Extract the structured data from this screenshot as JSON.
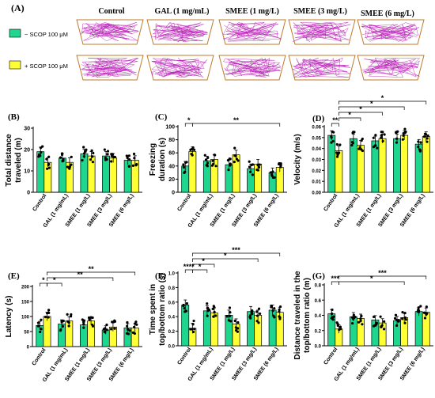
{
  "colors": {
    "minus": "#1fd68e",
    "plus": "#ffff33",
    "track": "#b81fb6",
    "frame": "#c07a2a",
    "dot": "#000000"
  },
  "panel_a": {
    "label": "(A)",
    "columns": [
      "Control",
      "GAL (1 mg/mL)",
      "SMEE (1 mg/L)",
      "SMEE (3 mg/L)",
      "SMEE (6 mg/L)"
    ],
    "rows": [
      {
        "legend": "− SCOP 100 μM",
        "color_key": "minus"
      },
      {
        "legend": "+ SCOP 100 μM",
        "color_key": "plus"
      }
    ]
  },
  "chart_data": [
    {
      "panel": "(B)",
      "type": "bar",
      "categories": [
        "Control",
        "GAL (1 mg/mL)",
        "SMEE (1 mg/L)",
        "SMEE (3 mg/L)",
        "SMEE (6 mg/L)"
      ],
      "series": [
        {
          "name": "− SCOP 100 μM",
          "values": [
            19,
            16,
            18,
            17,
            15
          ]
        },
        {
          "name": "+ SCOP 100 μM",
          "values": [
            14,
            14,
            17,
            16,
            15
          ]
        }
      ],
      "ylabel": "Total distance traveled (m)",
      "ylim": [
        0,
        30
      ],
      "yticks": [
        0,
        10,
        20,
        30
      ],
      "sig": []
    },
    {
      "panel": "(C)",
      "type": "bar",
      "categories": [
        "Control",
        "GAL (1 mg/mL)",
        "SMEE (1 mg/L)",
        "SMEE (3 mg/L)",
        "SMEE (6 mg/L)"
      ],
      "series": [
        {
          "name": "− SCOP 100 μM",
          "values": [
            40,
            48,
            42,
            36,
            30
          ]
        },
        {
          "name": "+ SCOP 100 μM",
          "values": [
            62,
            50,
            57,
            43,
            38
          ]
        }
      ],
      "ylabel": "Freezing duration (s)",
      "ylim": [
        0,
        100
      ],
      "yticks": [
        0,
        20,
        40,
        60,
        80,
        100
      ],
      "sig": [
        {
          "from": [
            0,
            0
          ],
          "to": [
            0,
            1
          ],
          "level": 1,
          "text": "*"
        },
        {
          "from": [
            0,
            1
          ],
          "to": [
            4,
            1
          ],
          "level": 1,
          "text": "**"
        }
      ]
    },
    {
      "panel": "(D)",
      "type": "bar",
      "categories": [
        "Control",
        "GAL (1 mg/mL)",
        "SMEE (1 mg/L)",
        "SMEE (3 mg/L)",
        "SMEE (6 mg/L)"
      ],
      "series": [
        {
          "name": "− SCOP 100 μM",
          "values": [
            0.052,
            0.049,
            0.047,
            0.049,
            0.044
          ]
        },
        {
          "name": "+ SCOP 100 μM",
          "values": [
            0.038,
            0.043,
            0.049,
            0.052,
            0.051
          ]
        }
      ],
      "ylabel": "Velocity (m/s)",
      "ylim": [
        0,
        0.06
      ],
      "yticks": [
        0.0,
        0.01,
        0.02,
        0.03,
        0.04,
        0.05,
        0.06
      ],
      "sig": [
        {
          "from": [
            0,
            0
          ],
          "to": [
            0,
            1
          ],
          "level": 1,
          "text": "**"
        },
        {
          "from": [
            0,
            1
          ],
          "to": [
            1,
            1
          ],
          "level": 2,
          "text": "*"
        },
        {
          "from": [
            0,
            1
          ],
          "to": [
            2,
            1
          ],
          "level": 3,
          "text": "*"
        },
        {
          "from": [
            0,
            1
          ],
          "to": [
            3,
            1
          ],
          "level": 4,
          "text": "*"
        },
        {
          "from": [
            0,
            1
          ],
          "to": [
            4,
            1
          ],
          "level": 5,
          "text": "*"
        }
      ]
    },
    {
      "panel": "(E)",
      "type": "bar",
      "categories": [
        "Control",
        "GAL (1 mg/mL)",
        "SMEE (1 mg/L)",
        "SMEE (3 mg/L)",
        "SMEE (6 mg/L)"
      ],
      "series": [
        {
          "name": "− SCOP 100 μM",
          "values": [
            70,
            75,
            72,
            55,
            62
          ]
        },
        {
          "name": "+ SCOP 100 μM",
          "values": [
            100,
            85,
            85,
            65,
            62
          ]
        }
      ],
      "ylabel": "Latency (s)",
      "ylim": [
        0,
        200
      ],
      "yticks": [
        0,
        50,
        100,
        150,
        200
      ],
      "sig": [
        {
          "from": [
            0,
            0
          ],
          "to": [
            0,
            1
          ],
          "level": 1,
          "text": "*"
        },
        {
          "from": [
            0,
            1
          ],
          "to": [
            1,
            0
          ],
          "level": 1,
          "text": "*"
        },
        {
          "from": [
            0,
            1
          ],
          "to": [
            3,
            1
          ],
          "level": 2,
          "text": "**"
        },
        {
          "from": [
            0,
            1
          ],
          "to": [
            4,
            1
          ],
          "level": 3,
          "text": "**"
        }
      ]
    },
    {
      "panel": "(F)",
      "type": "bar",
      "categories": [
        "Control",
        "GAL (1 mg/mL)",
        "SMEE (1 mg/L)",
        "SMEE (3 mg/L)",
        "SMEE (6 mg/L)"
      ],
      "series": [
        {
          "name": "− SCOP 100 μM",
          "values": [
            0.56,
            0.48,
            0.42,
            0.47,
            0.49
          ]
        },
        {
          "name": "+ SCOP 100 μM",
          "values": [
            0.24,
            0.45,
            0.3,
            0.42,
            0.46
          ]
        }
      ],
      "ylabel": "Time spent in top/bottom ratio (s)",
      "ylim": [
        0,
        1.0
      ],
      "yticks": [
        0.0,
        0.2,
        0.4,
        0.6,
        0.8,
        1.0
      ],
      "sig": [
        {
          "from": [
            0,
            0
          ],
          "to": [
            0,
            1
          ],
          "level": 1,
          "text": "****"
        },
        {
          "from": [
            0,
            1
          ],
          "to": [
            1,
            0
          ],
          "level": 1,
          "text": "*"
        },
        {
          "from": [
            0,
            1
          ],
          "to": [
            1,
            1
          ],
          "level": 2,
          "text": "*"
        },
        {
          "from": [
            0,
            1
          ],
          "to": [
            3,
            1
          ],
          "level": 3,
          "text": "*"
        },
        {
          "from": [
            0,
            1
          ],
          "to": [
            4,
            1
          ],
          "level": 4,
          "text": "***"
        }
      ]
    },
    {
      "panel": "(G)",
      "type": "bar",
      "categories": [
        "Control",
        "GAL (1 mg/mL)",
        "SMEE (1 mg/L)",
        "SMEE (3 mg/L)",
        "SMEE (6 mg/L)"
      ],
      "series": [
        {
          "name": "− SCOP 100 μM",
          "values": [
            0.42,
            0.38,
            0.34,
            0.33,
            0.45
          ]
        },
        {
          "name": "+ SCOP 100 μM",
          "values": [
            0.22,
            0.36,
            0.3,
            0.37,
            0.44
          ]
        }
      ],
      "ylabel": "Distance traveled in the top/bottom ratio (m)",
      "ylim": [
        0,
        0.8
      ],
      "yticks": [
        0.0,
        0.2,
        0.4,
        0.6,
        0.8
      ],
      "sig": [
        {
          "from": [
            0,
            0
          ],
          "to": [
            0,
            1
          ],
          "level": 1,
          "text": "***"
        },
        {
          "from": [
            0,
            1
          ],
          "to": [
            3,
            1
          ],
          "level": 1,
          "text": "*"
        },
        {
          "from": [
            0,
            1
          ],
          "to": [
            4,
            1
          ],
          "level": 2,
          "text": "***"
        }
      ]
    }
  ]
}
